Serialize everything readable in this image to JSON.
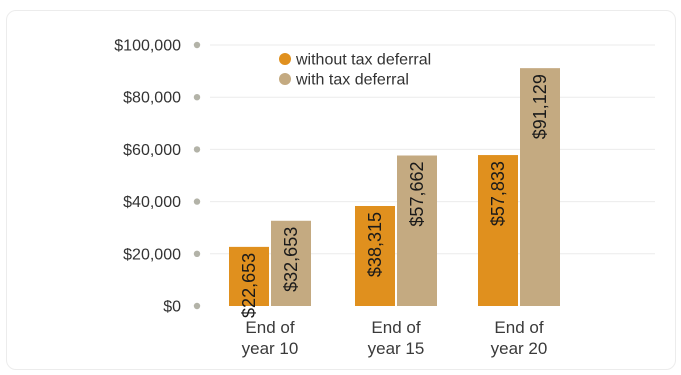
{
  "chart_data": {
    "type": "bar",
    "title": "",
    "xlabel": "",
    "ylabel": "",
    "categories": [
      [
        "End of",
        "year 10"
      ],
      [
        "End of",
        "year 15"
      ],
      [
        "End of",
        "year 20"
      ]
    ],
    "series": [
      {
        "name": "without tax deferral",
        "color": "#e0901e",
        "values": [
          22653,
          38315,
          57833
        ],
        "labels": [
          "$22,653",
          "$38,315",
          "$57,833"
        ]
      },
      {
        "name": "with tax deferral",
        "color": "#c4aa81",
        "values": [
          32653,
          57662,
          91129
        ],
        "labels": [
          "$32,653",
          "$57,662",
          "$91,129"
        ]
      }
    ],
    "ylim": [
      0,
      100000
    ],
    "yticks": [
      0,
      20000,
      40000,
      60000,
      80000,
      100000
    ],
    "ytick_labels": [
      "$0",
      "$20,000",
      "$40,000",
      "$60,000",
      "$80,000",
      "$100,000"
    ],
    "grid": true,
    "legend_position": "top",
    "value_label_orientation": "vertical",
    "colors": {
      "grid": "#ebebeb",
      "tick_dot": "#b3b3a8",
      "frame_border": "#ececec"
    }
  }
}
